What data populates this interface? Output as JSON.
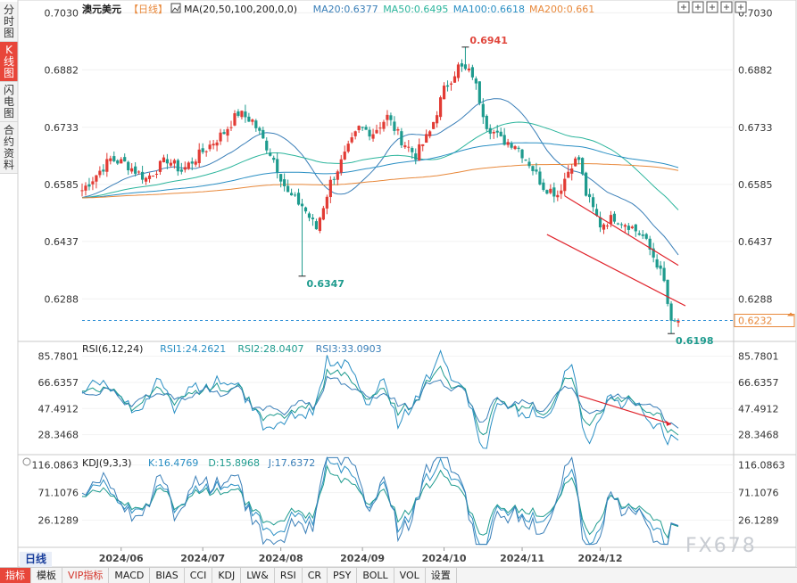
{
  "side_tabs": [
    {
      "label": "分时图",
      "active": false
    },
    {
      "label": "K线图",
      "active": true
    },
    {
      "label": "闪电图",
      "active": false
    },
    {
      "label": "合约资料",
      "active": false
    }
  ],
  "header": {
    "symbol": "澳元美元",
    "period_tag": "【日线】",
    "ma_label": "MA(20,50,100,200,0,0)",
    "ma20": "MA20:0.6377",
    "ma50": "MA50:0.6495",
    "ma100": "MA100:0.6618",
    "ma200": "MA200:0.661"
  },
  "rsi_header": {
    "label": "RSI(6,12,24)",
    "rsi1": "RSI1:24.2621",
    "rsi2": "RSI2:28.0407",
    "rsi3": "RSI3:33.0903"
  },
  "kdj_header": {
    "label": "KDJ(9,3,3)",
    "k": "K:16.4769",
    "d": "D:15.8968",
    "j": "J:17.6372"
  },
  "period_button": "日线",
  "bottom_tabs": [
    {
      "label": "指标",
      "active": true,
      "vip": false
    },
    {
      "label": "模板",
      "active": false,
      "vip": false
    },
    {
      "label": "VIP指标",
      "active": false,
      "vip": true
    },
    {
      "label": "MACD",
      "active": false,
      "vip": false
    },
    {
      "label": "BIAS",
      "active": false,
      "vip": false
    },
    {
      "label": "CCI",
      "active": false,
      "vip": false
    },
    {
      "label": "KDJ",
      "active": false,
      "vip": false
    },
    {
      "label": "LW&",
      "active": false,
      "vip": false
    },
    {
      "label": "RSI",
      "active": false,
      "vip": false
    },
    {
      "label": "CR",
      "active": false,
      "vip": false
    },
    {
      "label": "PSY",
      "active": false,
      "vip": false
    },
    {
      "label": "BOLL",
      "active": false,
      "vip": false
    },
    {
      "label": "VOL",
      "active": false,
      "vip": false
    },
    {
      "label": "设置",
      "active": false,
      "vip": false
    }
  ],
  "watermark": "FX678",
  "toolbar_icons": [
    "crosshair-icon",
    "zoom-in-icon",
    "zoom-out-icon",
    "move-left-icon",
    "move-right-icon"
  ],
  "colors": {
    "up": "#e23b34",
    "down": "#1e9b8e",
    "ma20": "#3a7fb8",
    "ma50": "#2bb59c",
    "ma100": "#2a8fc4",
    "ma200": "#e8883a",
    "rsi1": "#2a8fc4",
    "rsi2": "#1e9b8e",
    "rsi3": "#3a7fb8",
    "last_price": "#2e8fd6",
    "trend": "#e0242c"
  },
  "chart_data": [
    {
      "type": "candlestick",
      "title": "澳元美元【日线】",
      "x_ticks": [
        "2024/06",
        "2024/07",
        "2024/08",
        "2024/09",
        "2024/10",
        "2024/11",
        "2024/12"
      ],
      "y_ticks": [
        "0.7030",
        "0.6882",
        "0.6733",
        "0.6585",
        "0.6437",
        "0.6288"
      ],
      "ylim": [
        0.618,
        0.704
      ],
      "annotations": {
        "high": "0.6941",
        "low_aug": "0.6347",
        "low_dec": "0.6198"
      },
      "last_price": "0.6232",
      "last_price_value": 0.6232,
      "close_anchors": [
        [
          0,
          0.657
        ],
        [
          8,
          0.665
        ],
        [
          12,
          0.664
        ],
        [
          18,
          0.66
        ],
        [
          24,
          0.665
        ],
        [
          28,
          0.662
        ],
        [
          34,
          0.667
        ],
        [
          40,
          0.672
        ],
        [
          44,
          0.677
        ],
        [
          48,
          0.675
        ],
        [
          54,
          0.665
        ],
        [
          58,
          0.656
        ],
        [
          62,
          0.653
        ],
        [
          66,
          0.647
        ],
        [
          70,
          0.659
        ],
        [
          74,
          0.666
        ],
        [
          78,
          0.673
        ],
        [
          82,
          0.672
        ],
        [
          86,
          0.676
        ],
        [
          90,
          0.67
        ],
        [
          94,
          0.666
        ],
        [
          98,
          0.672
        ],
        [
          102,
          0.683
        ],
        [
          106,
          0.689
        ],
        [
          110,
          0.687
        ],
        [
          114,
          0.674
        ],
        [
          118,
          0.67
        ],
        [
          122,
          0.669
        ],
        [
          126,
          0.664
        ],
        [
          130,
          0.658
        ],
        [
          134,
          0.656
        ],
        [
          138,
          0.664
        ],
        [
          140,
          0.665
        ],
        [
          142,
          0.656
        ],
        [
          146,
          0.648
        ],
        [
          150,
          0.65
        ],
        [
          154,
          0.648
        ],
        [
          158,
          0.645
        ],
        [
          162,
          0.638
        ],
        [
          164,
          0.633
        ],
        [
          166,
          0.622
        ],
        [
          168,
          0.6232
        ]
      ],
      "series": [
        {
          "name": "MA20",
          "value": 0.6377
        },
        {
          "name": "MA50",
          "value": 0.6495
        },
        {
          "name": "MA100",
          "value": 0.6618
        },
        {
          "name": "MA200",
          "value": 0.661
        }
      ]
    },
    {
      "type": "line",
      "title": "RSI(6,12,24)",
      "y_ticks": [
        "85.7801",
        "66.6357",
        "47.4912",
        "28.3468"
      ],
      "ylim": [
        15,
        96
      ],
      "series": [
        {
          "name": "RSI1",
          "last": 24.2621
        },
        {
          "name": "RSI2",
          "last": 28.0407
        },
        {
          "name": "RSI3",
          "last": 33.0903
        }
      ]
    },
    {
      "type": "line",
      "title": "KDJ(9,3,3)",
      "y_ticks": [
        "116.0863",
        "71.1076",
        "26.1289"
      ],
      "ylim": [
        -15,
        130
      ],
      "series": [
        {
          "name": "K",
          "last": 16.4769
        },
        {
          "name": "D",
          "last": 15.8968
        },
        {
          "name": "J",
          "last": 17.6372
        }
      ]
    }
  ]
}
